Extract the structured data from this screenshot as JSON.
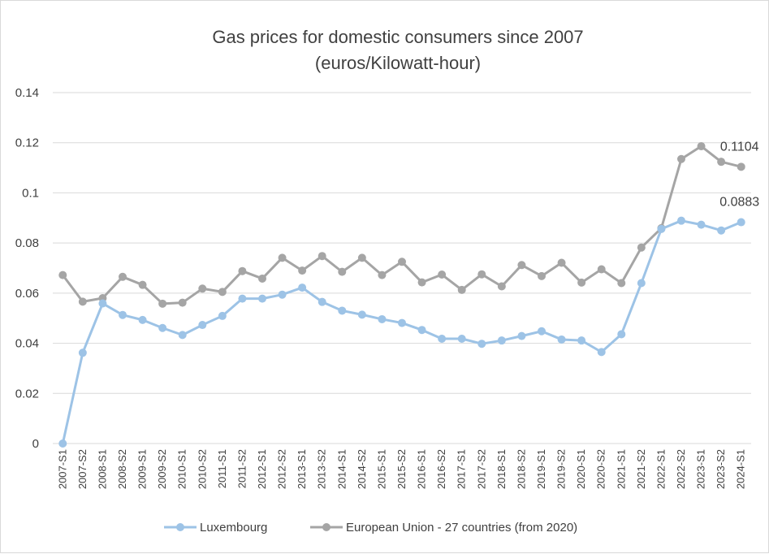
{
  "chart_data": {
    "type": "line",
    "title": "Gas prices for domestic consumers since 2007",
    "subtitle": "(euros/Kilowatt-hour)",
    "xlabel": "",
    "ylabel": "",
    "ylim": [
      0,
      0.14
    ],
    "yticks": [
      "0",
      "0.02",
      "0.04",
      "0.06",
      "0.08",
      "0.1",
      "0.12",
      "0.14"
    ],
    "grid": true,
    "legend_position": "bottom",
    "categories": [
      "2007-S1",
      "2007-S2",
      "2008-S1",
      "2008-S2",
      "2009-S1",
      "2009-S2",
      "2010-S1",
      "2010-S2",
      "2011-S1",
      "2011-S2",
      "2012-S1",
      "2012-S2",
      "2013-S1",
      "2013-S2",
      "2014-S1",
      "2014-S2",
      "2015-S1",
      "2015-S2",
      "2016-S1",
      "2016-S2",
      "2017-S1",
      "2017-S2",
      "2018-S1",
      "2018-S2",
      "2019-S1",
      "2019-S2",
      "2020-S1",
      "2020-S2",
      "2021-S1",
      "2021-S2",
      "2022-S1",
      "2022-S2",
      "2023-S1",
      "2023-S2",
      "2024-S1"
    ],
    "series": [
      {
        "name": "Luxembourg",
        "color": "#9dc3e6",
        "values": [
          0.0,
          0.0362,
          0.0559,
          0.0513,
          0.0493,
          0.0461,
          0.0433,
          0.0473,
          0.0509,
          0.0578,
          0.0578,
          0.0594,
          0.0622,
          0.0565,
          0.053,
          0.0514,
          0.0496,
          0.0481,
          0.0453,
          0.0418,
          0.0418,
          0.0398,
          0.0411,
          0.0429,
          0.0448,
          0.0415,
          0.0411,
          0.0365,
          0.0436,
          0.064,
          0.0856,
          0.0889,
          0.0873,
          0.085,
          0.0883
        ],
        "end_label": "0.0883"
      },
      {
        "name": "European Union - 27 countries (from 2020)",
        "color": "#a5a5a5",
        "values": [
          0.0672,
          0.0566,
          0.058,
          0.0665,
          0.0633,
          0.0558,
          0.0562,
          0.0618,
          0.0605,
          0.0688,
          0.0658,
          0.0741,
          0.069,
          0.0748,
          0.0685,
          0.0741,
          0.0672,
          0.0725,
          0.0643,
          0.0674,
          0.0613,
          0.0675,
          0.0627,
          0.0712,
          0.0668,
          0.0721,
          0.0642,
          0.0695,
          0.064,
          0.0782,
          0.0859,
          0.1135,
          0.1186,
          0.1124,
          0.1104
        ],
        "end_label": "0.1104"
      }
    ]
  }
}
